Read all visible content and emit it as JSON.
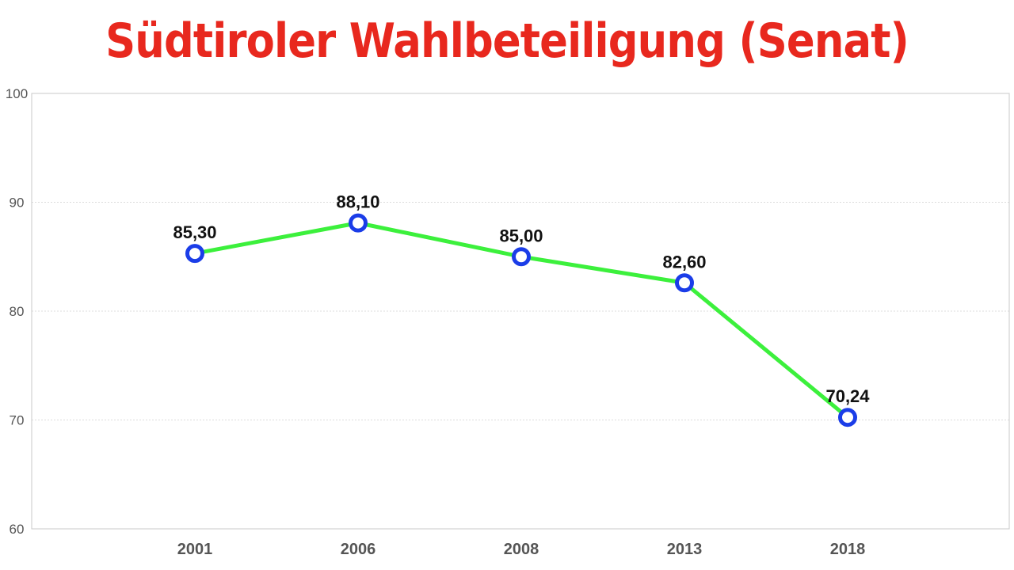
{
  "chart_data": {
    "type": "line",
    "title": "Südtiroler Wahlbeteiligung (Senat)",
    "categories": [
      "2001",
      "2006",
      "2008",
      "2013",
      "2018"
    ],
    "series": [
      {
        "values": [
          85.3,
          88.1,
          85.0,
          82.6,
          70.24
        ],
        "data_labels": [
          "85,30",
          "88,10",
          "85,00",
          "82,60",
          "70,24"
        ]
      }
    ],
    "y_ticks": [
      "100",
      "90",
      "80",
      "70",
      "60"
    ],
    "ylim": [
      60,
      100
    ],
    "grid": true,
    "line_color": "#3cf03c",
    "marker_color": "#1b3de8",
    "title_color": "#e8281e"
  }
}
